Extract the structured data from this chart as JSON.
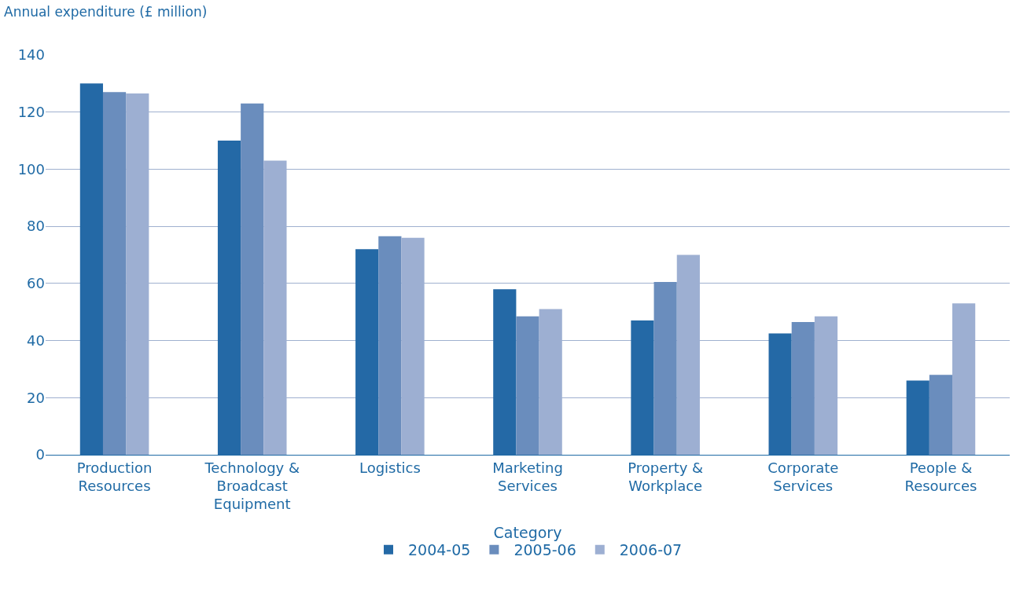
{
  "chart_data": {
    "type": "bar",
    "ylabel": "Annual expenditure (£ million)",
    "xlabel": "Category",
    "categories": [
      "Production Resources",
      "Technology & Broadcast Equipment",
      "Logistics",
      "Marketing Services",
      "Property & Workplace",
      "Corporate Services",
      "People & Resources"
    ],
    "series": [
      {
        "name": "2004-05",
        "color": "#2469a6",
        "values": [
          130,
          110,
          72,
          58,
          47,
          42.5,
          26
        ]
      },
      {
        "name": "2005-06",
        "color": "#6a8dbd",
        "values": [
          127,
          123,
          76.5,
          48.5,
          60.5,
          46.5,
          28
        ]
      },
      {
        "name": "2006-07",
        "color": "#9dafd2",
        "values": [
          126.5,
          103,
          76,
          51,
          70,
          48.5,
          53
        ]
      }
    ],
    "ylim": [
      0,
      140
    ],
    "yticks": [
      0,
      20,
      40,
      60,
      80,
      100,
      120,
      140
    ],
    "grid": "y",
    "legend": "bottom"
  }
}
